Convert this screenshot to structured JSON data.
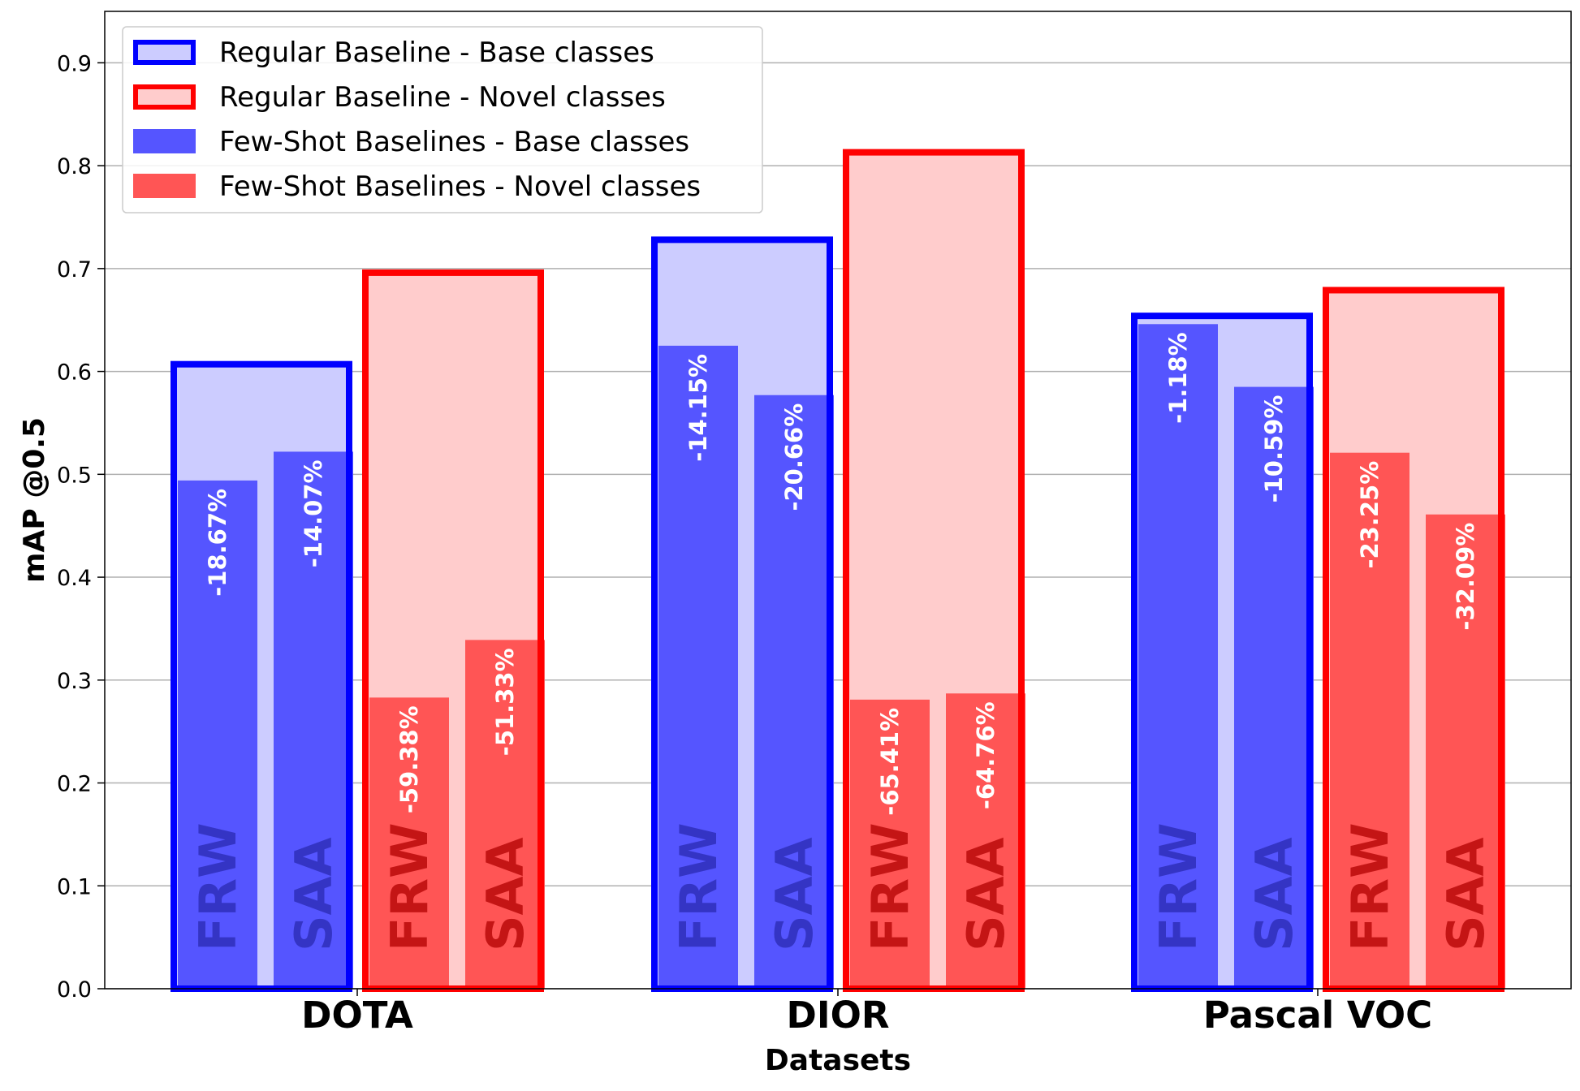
{
  "chart_data": {
    "type": "bar",
    "xlabel": "Datasets",
    "ylabel": "mAP @0.5",
    "ylim": [
      0,
      0.95
    ],
    "yticks": [
      "0.0",
      "0.1",
      "0.2",
      "0.3",
      "0.4",
      "0.5",
      "0.6",
      "0.7",
      "0.8",
      "0.9"
    ],
    "grid": "horizontal",
    "legend_position": "top-left",
    "categories": [
      "DOTA",
      "DIOR",
      "Pascal VOC"
    ],
    "series": [
      {
        "name": "Regular Baseline - Base classes",
        "values": [
          0.607,
          0.728,
          0.654
        ],
        "color": "#0000ff",
        "fill": "#ccccff"
      },
      {
        "name": "Regular Baseline - Novel classes",
        "values": [
          0.696,
          0.813,
          0.679
        ],
        "color": "#ff0000",
        "fill": "#ffcccc"
      },
      {
        "name": "Few-Shot Baselines - Base classes",
        "color": "#5555ff",
        "methods": [
          {
            "method": "FRW",
            "values": [
              0.494,
              0.625,
              0.646
            ],
            "labels": [
              "-18.67%",
              "-14.15%",
              "-1.18%"
            ]
          },
          {
            "method": "SAA",
            "values": [
              0.522,
              0.577,
              0.585
            ],
            "labels": [
              "-14.07%",
              "-20.66%",
              "-10.59%"
            ]
          }
        ]
      },
      {
        "name": "Few-Shot Baselines - Novel classes",
        "color": "#ff5555",
        "methods": [
          {
            "method": "FRW",
            "values": [
              0.283,
              0.281,
              0.521
            ],
            "labels": [
              "-59.38%",
              "-65.41%",
              "-23.25%"
            ]
          },
          {
            "method": "SAA",
            "values": [
              0.339,
              0.287,
              0.461
            ],
            "labels": [
              "-51.33%",
              "-64.76%",
              "-32.09%"
            ]
          }
        ]
      }
    ]
  }
}
